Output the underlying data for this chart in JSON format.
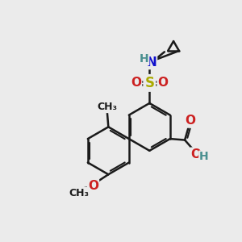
{
  "bg_color": "#ebebeb",
  "bond_color": "#1a1a1a",
  "bond_width": 1.8,
  "atom_colors": {
    "C": "#1a1a1a",
    "H": "#4a9090",
    "N": "#1010cc",
    "O": "#cc2020",
    "S": "#aaaa00"
  },
  "font_size": 10
}
